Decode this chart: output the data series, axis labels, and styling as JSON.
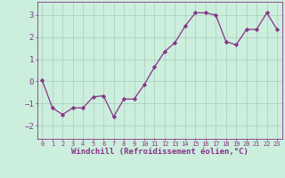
{
  "x": [
    0,
    1,
    2,
    3,
    4,
    5,
    6,
    7,
    8,
    9,
    10,
    11,
    12,
    13,
    14,
    15,
    16,
    17,
    18,
    19,
    20,
    21,
    22,
    23
  ],
  "y": [
    0.05,
    -1.2,
    -1.5,
    -1.2,
    -1.2,
    -0.7,
    -0.65,
    -1.6,
    -0.8,
    -0.8,
    -0.15,
    0.65,
    1.35,
    1.75,
    2.5,
    3.1,
    3.1,
    3.0,
    1.8,
    1.65,
    2.35,
    2.35,
    3.1,
    2.35
  ],
  "line_color": "#883388",
  "marker": "D",
  "markersize": 2.2,
  "linewidth": 0.9,
  "background_color": "#cceedd",
  "grid_color": "#aaccbb",
  "xlabel": "Windchill (Refroidissement éolien,°C)",
  "xlabel_color": "#883388",
  "tick_color": "#883388",
  "ylabel_ticks": [
    -2,
    -1,
    0,
    1,
    2,
    3
  ],
  "xtick_labels": [
    "0",
    "1",
    "2",
    "3",
    "4",
    "5",
    "6",
    "7",
    "8",
    "9",
    "10",
    "11",
    "12",
    "13",
    "14",
    "15",
    "16",
    "17",
    "18",
    "19",
    "20",
    "21",
    "22",
    "23"
  ],
  "ylim": [
    -2.6,
    3.6
  ],
  "xlim": [
    -0.5,
    23.5
  ]
}
